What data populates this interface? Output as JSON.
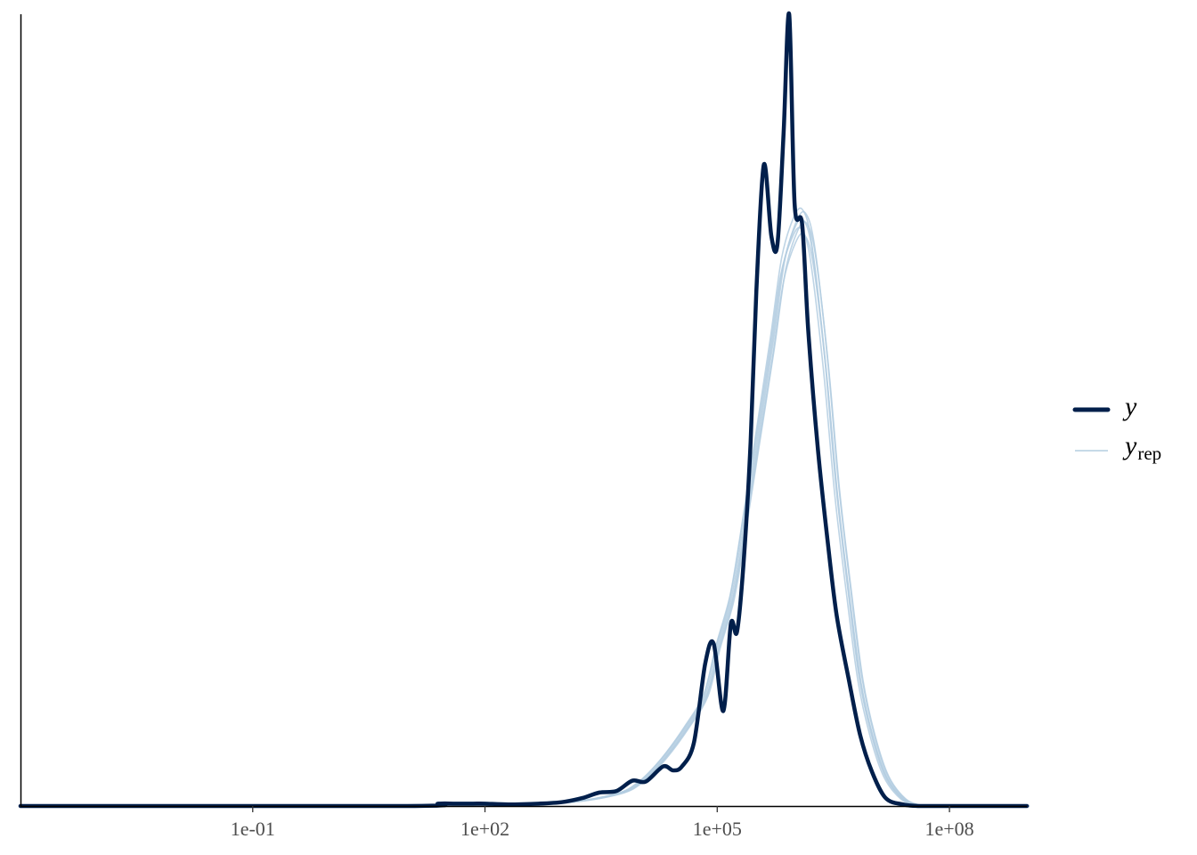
{
  "chart_data": {
    "type": "line",
    "title": "",
    "xlabel": "",
    "ylabel": "",
    "x_scale": "log10",
    "xlim": [
      0.0001,
      1000000000
    ],
    "ylim": [
      0,
      1
    ],
    "grid": false,
    "legend_position": "right",
    "x_ticks": [
      {
        "value": 0.1,
        "label": "1e-01"
      },
      {
        "value": 100,
        "label": "1e+02"
      },
      {
        "value": 100000,
        "label": "1e+05"
      },
      {
        "value": 100000000,
        "label": "1e+08"
      }
    ],
    "legend": [
      {
        "key": "y",
        "label": "y",
        "subscript": ""
      },
      {
        "key": "yrep",
        "label": "y",
        "subscript": "rep"
      }
    ],
    "series": [
      {
        "key": "y",
        "color": "#011f4b",
        "x": [
          0.0001,
          10,
          25,
          40,
          70,
          100,
          200,
          500,
          1000,
          1800,
          3000,
          5000,
          8000,
          12000,
          20000,
          27000,
          35000,
          50000,
          70000,
          90000,
          120000,
          150000,
          180000,
          220000,
          270000,
          320000,
          400000,
          500000,
          600000,
          720000,
          850000,
          1000000,
          1250000,
          1500000,
          2000000,
          2700000,
          3500000,
          5000000,
          7000000,
          10000000,
          15000000,
          25000000,
          40000000,
          60000000,
          100000000,
          1000000000
        ],
        "y": [
          0,
          0,
          0.003,
          0.003,
          0.003,
          0.003,
          0.002,
          0.003,
          0.005,
          0.01,
          0.017,
          0.019,
          0.032,
          0.031,
          0.05,
          0.045,
          0.05,
          0.08,
          0.18,
          0.205,
          0.12,
          0.23,
          0.22,
          0.31,
          0.46,
          0.65,
          0.81,
          0.72,
          0.71,
          0.85,
          1.0,
          0.76,
          0.735,
          0.6,
          0.45,
          0.33,
          0.24,
          0.16,
          0.09,
          0.043,
          0.01,
          0.002,
          0,
          0,
          0,
          0
        ]
      },
      {
        "key": "yrep",
        "color": "#b3cde0",
        "x": [
          0.0001,
          10,
          100,
          1000,
          5000,
          10000,
          20000,
          40000,
          70000,
          100000,
          150000,
          200000,
          300000,
          500000,
          700000,
          1000000,
          1300000,
          1700000,
          2500000,
          3500000,
          5000000,
          7000000,
          10000000,
          15000000,
          25000000,
          40000000,
          60000000,
          100000000,
          1000000000
        ],
        "y": [
          0,
          0,
          0.001,
          0.004,
          0.015,
          0.03,
          0.06,
          0.1,
          0.14,
          0.2,
          0.26,
          0.33,
          0.44,
          0.58,
          0.68,
          0.73,
          0.74,
          0.7,
          0.56,
          0.4,
          0.27,
          0.16,
          0.09,
          0.038,
          0.009,
          0.001,
          0,
          0,
          0
        ]
      }
    ]
  }
}
